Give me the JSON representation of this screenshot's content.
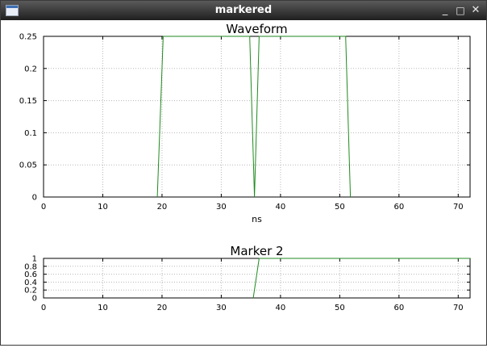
{
  "window": {
    "title": "markered",
    "minimize_label": "_",
    "maximize_label": "□",
    "close_label": "✕",
    "app_icon": "window-icon"
  },
  "chart_data": [
    {
      "type": "line",
      "title": "Waveform",
      "xlabel": "ns",
      "ylabel": "",
      "xlim": [
        0,
        72
      ],
      "ylim": [
        0,
        0.25
      ],
      "xticks": [
        0,
        10,
        20,
        30,
        40,
        50,
        60,
        70
      ],
      "yticks": [
        0,
        0.05,
        0.1,
        0.15,
        0.2,
        0.25
      ],
      "ytick_labels": [
        "0",
        "0.05",
        "0.1",
        "0.15",
        "0.2",
        "0.25"
      ],
      "grid": true,
      "color": "#1f8a1f",
      "series": [
        {
          "x": [
            19.2,
            20.2,
            34.8,
            35.6,
            36.4,
            51.0,
            51.8
          ],
          "y": [
            0,
            0.25,
            0.25,
            0,
            0.25,
            0.25,
            0
          ]
        }
      ]
    },
    {
      "type": "line",
      "title": "Marker 2",
      "xlabel": "",
      "ylabel": "",
      "xlim": [
        0,
        72
      ],
      "ylim": [
        0,
        1
      ],
      "xticks": [
        0,
        10,
        20,
        30,
        40,
        50,
        60,
        70
      ],
      "yticks": [
        0,
        0.2,
        0.4,
        0.6,
        0.8,
        1
      ],
      "ytick_labels": [
        "0",
        "0.2",
        "0.4",
        "0.6",
        "0.8",
        "1"
      ],
      "grid": true,
      "color": "#1f8a1f",
      "series": [
        {
          "x": [
            35.4,
            36.4,
            72
          ],
          "y": [
            0,
            1,
            1
          ]
        }
      ]
    }
  ]
}
